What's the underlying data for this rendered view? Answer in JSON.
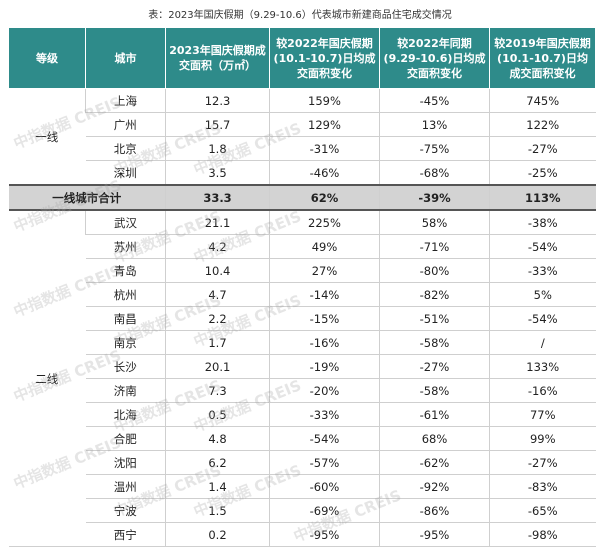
{
  "title": "表：2023年国庆假期（9.29-10.6）代表城市新建商品住宅成交情况",
  "header": {
    "c0": "等级",
    "c1": "城市",
    "c2": "2023年国庆假期成交面积（万㎡）",
    "c3": "较2022年国庆假期(10.1-10.7)日均成交面积变化",
    "c4": "较2022年同期(9.29-10.6)日均成交面积变化",
    "c5": "较2019年国庆假期(10.1-10.7)日均成交面积变化"
  },
  "tier1": {
    "label": "一线",
    "rows": [
      {
        "city": "上海",
        "area": "12.3",
        "v2022h": "159%",
        "v2022p": "-45%",
        "v2019": "745%"
      },
      {
        "city": "广州",
        "area": "15.7",
        "v2022h": "129%",
        "v2022p": "13%",
        "v2019": "122%"
      },
      {
        "city": "北京",
        "area": "1.8",
        "v2022h": "-31%",
        "v2022p": "-75%",
        "v2019": "-27%"
      },
      {
        "city": "深圳",
        "area": "3.5",
        "v2022h": "-46%",
        "v2022p": "-68%",
        "v2019": "-25%"
      }
    ],
    "total": {
      "label": "一线城市合计",
      "area": "33.3",
      "v2022h": "62%",
      "v2022p": "-39%",
      "v2019": "113%"
    }
  },
  "tier2": {
    "label": "二线",
    "rows": [
      {
        "city": "武汉",
        "area": "21.1",
        "v2022h": "225%",
        "v2022p": "58%",
        "v2019": "-38%"
      },
      {
        "city": "苏州",
        "area": "4.2",
        "v2022h": "49%",
        "v2022p": "-71%",
        "v2019": "-54%"
      },
      {
        "city": "青岛",
        "area": "10.4",
        "v2022h": "27%",
        "v2022p": "-80%",
        "v2019": "-33%"
      },
      {
        "city": "杭州",
        "area": "4.7",
        "v2022h": "-14%",
        "v2022p": "-82%",
        "v2019": "5%"
      },
      {
        "city": "南昌",
        "area": "2.2",
        "v2022h": "-15%",
        "v2022p": "-51%",
        "v2019": "-54%"
      },
      {
        "city": "南京",
        "area": "1.7",
        "v2022h": "-16%",
        "v2022p": "-58%",
        "v2019": "/"
      },
      {
        "city": "长沙",
        "area": "20.1",
        "v2022h": "-19%",
        "v2022p": "-27%",
        "v2019": "133%"
      },
      {
        "city": "济南",
        "area": "7.3",
        "v2022h": "-20%",
        "v2022p": "-58%",
        "v2019": "-16%"
      },
      {
        "city": "北海",
        "area": "0.5",
        "v2022h": "-33%",
        "v2022p": "-61%",
        "v2019": "77%"
      },
      {
        "city": "合肥",
        "area": "4.8",
        "v2022h": "-54%",
        "v2022p": "68%",
        "v2019": "99%"
      },
      {
        "city": "沈阳",
        "area": "6.2",
        "v2022h": "-57%",
        "v2022p": "-62%",
        "v2019": "-27%"
      },
      {
        "city": "温州",
        "area": "1.4",
        "v2022h": "-60%",
        "v2022p": "-92%",
        "v2019": "-83%"
      },
      {
        "city": "宁波",
        "area": "1.5",
        "v2022h": "-69%",
        "v2022p": "-86%",
        "v2019": "-65%"
      },
      {
        "city": "西宁",
        "area": "0.2",
        "v2022h": "-95%",
        "v2022p": "-95%",
        "v2019": "-98%"
      }
    ]
  },
  "watermark": "中指数据 CREIS"
}
